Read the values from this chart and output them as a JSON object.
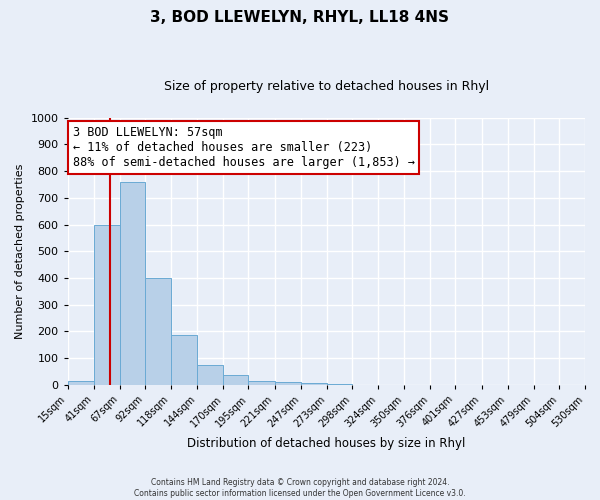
{
  "title": "3, BOD LLEWELYN, RHYL, LL18 4NS",
  "subtitle": "Size of property relative to detached houses in Rhyl",
  "bar_values": [
    15,
    600,
    760,
    400,
    185,
    75,
    38,
    15,
    12,
    5,
    3,
    0,
    0,
    0,
    0,
    0,
    0,
    0,
    0,
    0
  ],
  "bin_labels": [
    "15sqm",
    "41sqm",
    "67sqm",
    "92sqm",
    "118sqm",
    "144sqm",
    "170sqm",
    "195sqm",
    "221sqm",
    "247sqm",
    "273sqm",
    "298sqm",
    "324sqm",
    "350sqm",
    "376sqm",
    "401sqm",
    "427sqm",
    "453sqm",
    "479sqm",
    "504sqm",
    "530sqm"
  ],
  "bin_edges": [
    15,
    41,
    67,
    92,
    118,
    144,
    170,
    195,
    221,
    247,
    273,
    298,
    324,
    350,
    376,
    401,
    427,
    453,
    479,
    504,
    530
  ],
  "bar_color": "#b8d0e8",
  "bar_edge_color": "#6aaad4",
  "vline_x": 57,
  "vline_color": "#cc0000",
  "ylabel": "Number of detached properties",
  "xlabel": "Distribution of detached houses by size in Rhyl",
  "ylim": [
    0,
    1000
  ],
  "yticks": [
    0,
    100,
    200,
    300,
    400,
    500,
    600,
    700,
    800,
    900,
    1000
  ],
  "annotation_title": "3 BOD LLEWELYN: 57sqm",
  "annotation_line1": "← 11% of detached houses are smaller (223)",
  "annotation_line2": "88% of semi-detached houses are larger (1,853) →",
  "annotation_box_facecolor": "#ffffff",
  "annotation_box_edgecolor": "#cc0000",
  "footer_line1": "Contains HM Land Registry data © Crown copyright and database right 2024.",
  "footer_line2": "Contains public sector information licensed under the Open Government Licence v3.0.",
  "background_color": "#e8eef8",
  "grid_color": "#ffffff",
  "title_fontsize": 11,
  "subtitle_fontsize": 9
}
